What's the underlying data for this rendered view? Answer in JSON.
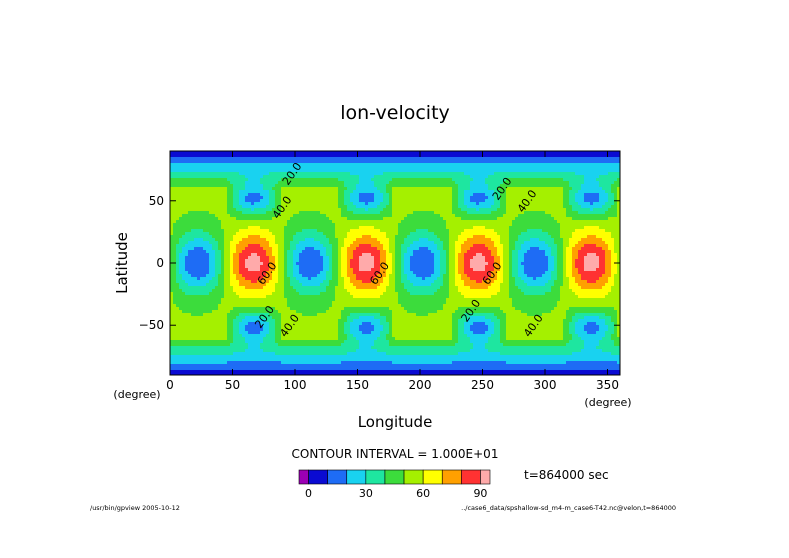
{
  "chart_data": {
    "type": "heatmap",
    "title": "lon-velocity",
    "xlabel": "Longitude",
    "ylabel": "Latitude",
    "x_unit": "(degree)",
    "y_unit": "(degree)",
    "xlim": [
      0,
      360
    ],
    "ylim": [
      -90,
      90
    ],
    "x_ticks": [
      0,
      50,
      100,
      150,
      200,
      250,
      300,
      350
    ],
    "y_ticks": [
      50,
      0,
      -50
    ],
    "x_tick_labels": [
      "0",
      "50",
      "100",
      "150",
      "200",
      "250",
      "300",
      "350"
    ],
    "y_tick_labels": [
      "50",
      "0",
      "−50"
    ],
    "pattern": {
      "zonal_wavenumber": 4,
      "high_centers": [
        {
          "lon": 67,
          "lat": 0
        },
        {
          "lon": 157,
          "lat": 0
        },
        {
          "lon": 247,
          "lat": 0
        },
        {
          "lon": 337,
          "lat": 0
        }
      ],
      "low_centers_equator": [
        {
          "lon": 22,
          "lat": 0
        },
        {
          "lon": 112,
          "lat": 0
        },
        {
          "lon": 202,
          "lat": 0
        },
        {
          "lon": 292,
          "lat": 0
        }
      ],
      "low_centers_midlat": [
        {
          "lon": 67,
          "lat": 52
        },
        {
          "lon": 157,
          "lat": 52
        },
        {
          "lon": 247,
          "lat": 52
        },
        {
          "lon": 337,
          "lat": 52
        },
        {
          "lon": 67,
          "lat": -52
        },
        {
          "lon": 157,
          "lat": -52
        },
        {
          "lon": 247,
          "lat": -52
        },
        {
          "lon": 337,
          "lat": -52
        }
      ],
      "max_value": 95,
      "min_value": 0
    },
    "contour_labels": [
      {
        "text": "20.0",
        "lon": 100,
        "lat": 70
      },
      {
        "text": "40.0",
        "lon": 92,
        "lat": 43
      },
      {
        "text": "20.0",
        "lon": 268,
        "lat": 58
      },
      {
        "text": "40.0",
        "lon": 288,
        "lat": 48
      },
      {
        "text": "60.0",
        "lon": 80,
        "lat": -10
      },
      {
        "text": "60.0",
        "lon": 170,
        "lat": -10
      },
      {
        "text": "60.0",
        "lon": 260,
        "lat": -10
      },
      {
        "text": "20.0",
        "lon": 78,
        "lat": -45
      },
      {
        "text": "40.0",
        "lon": 98,
        "lat": -52
      },
      {
        "text": "20.0",
        "lon": 243,
        "lat": -40
      },
      {
        "text": "40.0",
        "lon": 293,
        "lat": -52
      }
    ]
  },
  "colorbar": {
    "levels": [
      0,
      10,
      20,
      30,
      40,
      50,
      60,
      70,
      80,
      90
    ],
    "colors": [
      "#9b00b4",
      "#0a0ad2",
      "#1e6cf5",
      "#19d2f0",
      "#1ee6a0",
      "#3cdc3c",
      "#a5f000",
      "#ffff00",
      "#ffa000",
      "#ff3232",
      "#ffaaaa"
    ],
    "tick_labels": [
      "0",
      "30",
      "60",
      "90"
    ],
    "interval_text": "CONTOUR INTERVAL = 1.000E+01"
  },
  "time_text": "t=864000 sec",
  "footer_left": "/usr/bin/gpview  2005-10-12",
  "footer_right": "../case6_data/spshallow-sd_m4-m_case6-T42.nc@velon,t=864000"
}
